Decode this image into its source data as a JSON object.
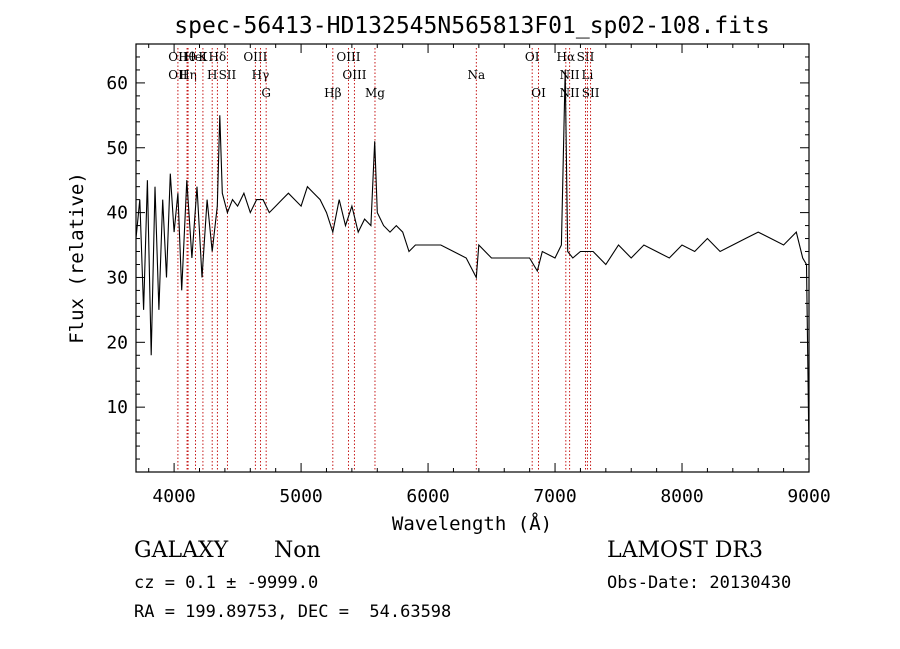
{
  "chart_data": {
    "type": "line",
    "title": "spec-56413-HD132545N565813F01_sp02-108.fits",
    "xlabel": "Wavelength (Å)",
    "ylabel": "Flux (relative)",
    "xlim": [
      3700,
      9000
    ],
    "ylim": [
      0,
      66
    ],
    "xticks": [
      4000,
      5000,
      6000,
      7000,
      8000,
      9000
    ],
    "yticks": [
      10,
      20,
      30,
      40,
      50,
      60
    ],
    "grid": false,
    "series": [
      {
        "name": "spectrum",
        "color": "#000000",
        "x": [
          3700,
          3730,
          3760,
          3790,
          3820,
          3850,
          3880,
          3910,
          3940,
          3970,
          4000,
          4030,
          4060,
          4100,
          4140,
          4180,
          4220,
          4260,
          4300,
          4340,
          4360,
          4380,
          4420,
          4460,
          4500,
          4550,
          4600,
          4650,
          4700,
          4750,
          4800,
          4850,
          4900,
          4950,
          5000,
          5050,
          5100,
          5150,
          5200,
          5250,
          5300,
          5350,
          5400,
          5450,
          5500,
          5550,
          5580,
          5600,
          5650,
          5700,
          5750,
          5800,
          5850,
          5900,
          6000,
          6100,
          6200,
          6300,
          6380,
          6400,
          6500,
          6600,
          6700,
          6800,
          6860,
          6900,
          7000,
          7050,
          7080,
          7100,
          7140,
          7200,
          7300,
          7400,
          7500,
          7600,
          7700,
          7800,
          7900,
          8000,
          8100,
          8200,
          8300,
          8400,
          8500,
          8600,
          8700,
          8800,
          8900,
          8950,
          8980,
          9000
        ],
        "y": [
          36,
          42,
          25,
          45,
          18,
          44,
          25,
          42,
          30,
          46,
          37,
          43,
          28,
          45,
          33,
          44,
          30,
          42,
          34,
          41,
          55,
          43,
          40,
          42,
          41,
          43,
          40,
          42,
          42,
          40,
          41,
          42,
          43,
          42,
          41,
          44,
          43,
          42,
          40,
          37,
          42,
          38,
          41,
          37,
          39,
          38,
          51,
          40,
          38,
          37,
          38,
          37,
          34,
          35,
          35,
          35,
          34,
          33,
          30,
          35,
          33,
          33,
          33,
          33,
          31,
          34,
          33,
          35,
          62,
          34,
          33,
          34,
          34,
          32,
          35,
          33,
          35,
          34,
          33,
          35,
          34,
          36,
          34,
          35,
          36,
          37,
          36,
          35,
          37,
          33,
          32,
          3
        ]
      }
    ],
    "lines": [
      {
        "x": 4030,
        "labels": [
          "OII",
          "OII"
        ]
      },
      {
        "x": 4102,
        "labels": [
          "Hθ"
        ]
      },
      {
        "x": 4110,
        "labels": [
          "",
          "Hη"
        ]
      },
      {
        "x": 4169,
        "labels": [
          "HeI"
        ]
      },
      {
        "x": 4227,
        "labels": [
          "K"
        ]
      },
      {
        "x": 4300,
        "labels": [
          "",
          "H"
        ]
      },
      {
        "x": 4341,
        "labels": [
          "Hδ"
        ]
      },
      {
        "x": 4420,
        "labels": [
          "",
          "SII"
        ]
      },
      {
        "x": 4640,
        "labels": [
          "OIII"
        ]
      },
      {
        "x": 4680,
        "labels": [
          "",
          "Hγ"
        ]
      },
      {
        "x": 4725,
        "labels": [
          "",
          "",
          "G"
        ]
      },
      {
        "x": 5250,
        "labels": [
          "",
          "",
          "Hβ"
        ]
      },
      {
        "x": 5373,
        "labels": [
          "OIII"
        ]
      },
      {
        "x": 5420,
        "labels": [
          "",
          "OIII"
        ]
      },
      {
        "x": 5582,
        "labels": [
          "",
          "",
          "Mg"
        ]
      },
      {
        "x": 6380,
        "labels": [
          "",
          "Na"
        ]
      },
      {
        "x": 6820,
        "labels": [
          "OI"
        ]
      },
      {
        "x": 6870,
        "labels": [
          "",
          "",
          "OI"
        ]
      },
      {
        "x": 7085,
        "labels": [
          "Hα"
        ]
      },
      {
        "x": 7115,
        "labels": [
          "",
          "NII",
          "NII"
        ]
      },
      {
        "x": 7240,
        "labels": [
          "SII"
        ]
      },
      {
        "x": 7255,
        "labels": [
          "",
          "Li"
        ]
      },
      {
        "x": 7280,
        "labels": [
          "",
          "",
          "SII"
        ]
      }
    ]
  },
  "info": {
    "classification": "GALAXY",
    "subclass": "Non",
    "survey": "LAMOST DR3",
    "cz_line": "cz = 0.1 ± -9999.0",
    "obs_date": "Obs-Date: 20130430",
    "radec": "RA = 199.89753, DEC =  54.63598"
  }
}
